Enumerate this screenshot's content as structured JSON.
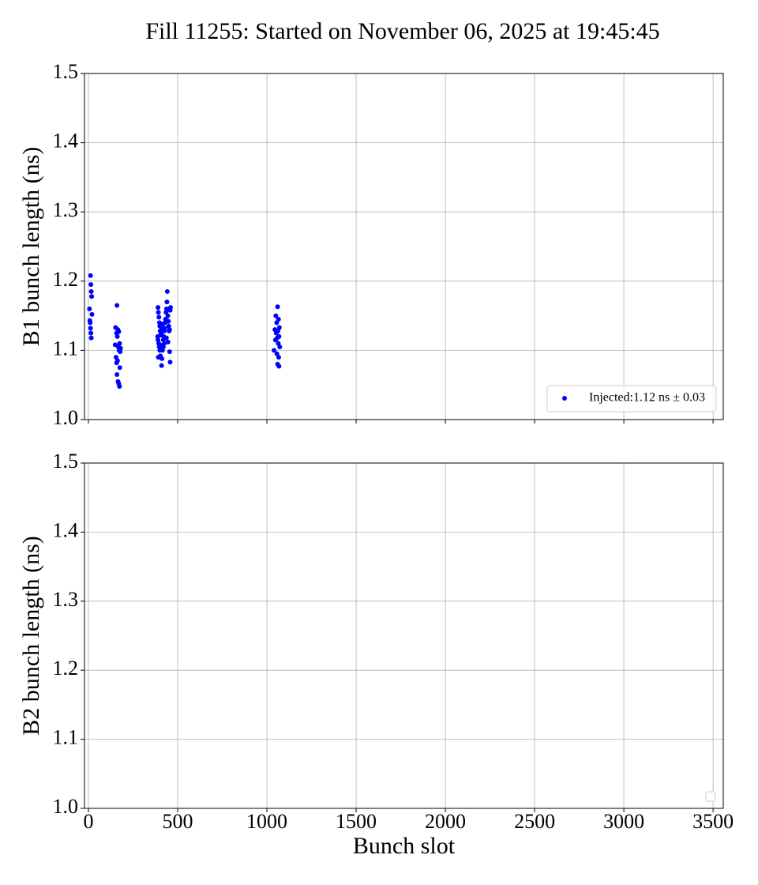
{
  "chart_data": [
    {
      "type": "scatter",
      "title": "Fill 11255: Started on November 06, 2025 at 19:45:45",
      "ylabel": "B1 bunch length (ns)",
      "xlim": [
        -22,
        3557
      ],
      "xticks": [
        0,
        500,
        1000,
        1500,
        2000,
        2500,
        3000,
        3500
      ],
      "show_xticklabels": false,
      "ylim": [
        1,
        1.5
      ],
      "yticks": [
        {
          "value": 1,
          "label": "1.0"
        },
        1.1,
        1.2,
        1.3,
        1.4,
        1.5
      ],
      "grid": true,
      "legend": "lower right",
      "series": [
        {
          "name": "Injected:1.12 ns ± 0.03",
          "color": "#0000ff",
          "x": [
            12,
            14,
            16,
            18,
            6,
            20,
            8,
            10,
            12,
            14,
            16,
            160,
            152,
            165,
            170,
            158,
            162,
            175,
            150,
            168,
            180,
            172,
            178,
            155,
            163,
            158,
            176,
            160,
            166,
            170,
            174,
            390,
            392,
            395,
            398,
            400,
            402,
            405,
            388,
            390,
            394,
            397,
            400,
            403,
            392,
            410,
            412,
            415,
            418,
            420,
            422,
            425,
            428,
            430,
            432,
            435,
            438,
            440,
            442,
            445,
            448,
            450,
            452,
            455,
            458,
            460,
            455,
            458,
            446,
            437,
            408,
            412,
            416,
            420,
            425,
            1060,
            1050,
            1065,
            1055,
            1070,
            1045,
            1062,
            1052,
            1068,
            1058,
            1048,
            1064,
            1072,
            1040,
            1056,
            1066,
            1060,
            1068
          ],
          "values": [
            1.208,
            1.195,
            1.185,
            1.178,
            1.16,
            1.152,
            1.143,
            1.14,
            1.132,
            1.125,
            1.118,
            1.165,
            1.133,
            1.13,
            1.127,
            1.125,
            1.12,
            1.11,
            1.108,
            1.105,
            1.103,
            1.1,
            1.098,
            1.09,
            1.085,
            1.082,
            1.075,
            1.065,
            1.055,
            1.052,
            1.048,
            1.162,
            1.155,
            1.148,
            1.14,
            1.135,
            1.128,
            1.122,
            1.12,
            1.115,
            1.11,
            1.105,
            1.1,
            1.092,
            1.09,
            1.078,
            1.088,
            1.1,
            1.108,
            1.115,
            1.12,
            1.128,
            1.132,
            1.14,
            1.145,
            1.155,
            1.16,
            1.17,
            1.185,
            1.15,
            1.142,
            1.135,
            1.128,
            1.13,
            1.158,
            1.162,
            1.098,
            1.083,
            1.112,
            1.118,
            1.125,
            1.132,
            1.138,
            1.105,
            1.11,
            1.163,
            1.15,
            1.145,
            1.14,
            1.133,
            1.13,
            1.128,
            1.125,
            1.12,
            1.118,
            1.115,
            1.11,
            1.105,
            1.1,
            1.095,
            1.09,
            1.08,
            1.077
          ]
        }
      ]
    },
    {
      "type": "scatter",
      "ylabel": "B2 bunch length (ns)",
      "xlabel": "Bunch slot",
      "xlim": [
        -22,
        3557
      ],
      "xticks": [
        0,
        500,
        1000,
        1500,
        2000,
        2500,
        3000,
        3500
      ],
      "show_xticklabels": true,
      "ylim": [
        1,
        1.5
      ],
      "yticks": [
        {
          "value": 1,
          "label": "1.0"
        },
        1.1,
        1.2,
        1.3,
        1.4,
        1.5
      ],
      "grid": true,
      "legend": "lower right",
      "series": []
    }
  ]
}
